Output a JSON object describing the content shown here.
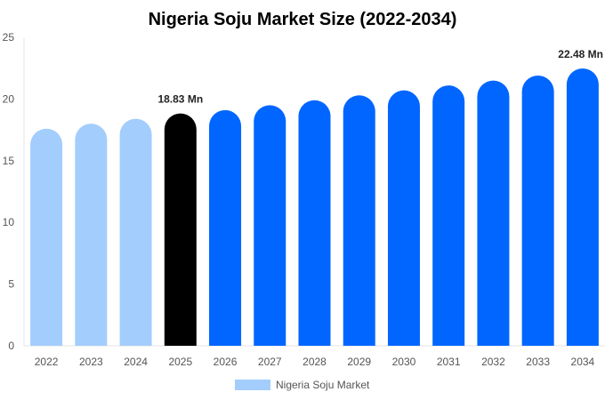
{
  "chart_data": {
    "type": "bar",
    "title": "Nigeria Soju Market Size (2022-2034)",
    "xlabel": "",
    "ylabel": "",
    "ylim": [
      0,
      25
    ],
    "yticks": [
      0,
      5,
      10,
      15,
      20,
      25
    ],
    "grid": false,
    "legend_position": "bottom",
    "categories": [
      "2022",
      "2023",
      "2024",
      "2025",
      "2026",
      "2027",
      "2028",
      "2029",
      "2030",
      "2031",
      "2032",
      "2033",
      "2034"
    ],
    "series": [
      {
        "name": "Nigeria Soju Market",
        "values": [
          17.6,
          18.0,
          18.4,
          18.83,
          19.1,
          19.5,
          19.9,
          20.3,
          20.7,
          21.1,
          21.5,
          21.9,
          22.48
        ]
      }
    ],
    "bar_colors": [
      "#a3cdfc",
      "#a3cdfc",
      "#a3cdfc",
      "#000000",
      "#0066ff",
      "#0066ff",
      "#0066ff",
      "#0066ff",
      "#0066ff",
      "#0066ff",
      "#0066ff",
      "#0066ff",
      "#0066ff"
    ],
    "legend_color": "#a3cdfc",
    "data_labels": [
      {
        "index": 3,
        "text": "18.83 Mn"
      },
      {
        "index": 12,
        "text": "22.48 Mn"
      }
    ]
  }
}
